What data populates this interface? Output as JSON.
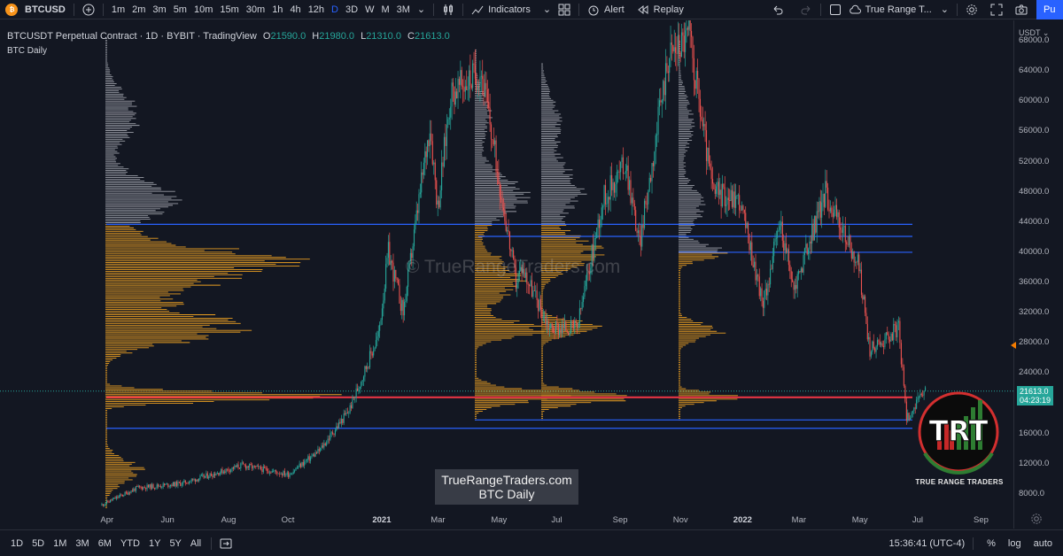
{
  "toolbar": {
    "symbol": "BTCUSD",
    "timeframes": [
      "1m",
      "2m",
      "3m",
      "5m",
      "10m",
      "15m",
      "30m",
      "1h",
      "4h",
      "12h",
      "D",
      "3D",
      "W",
      "M",
      "3M"
    ],
    "active_timeframe": "D",
    "indicators_label": "Indicators",
    "alert_label": "Alert",
    "replay_label": "Replay",
    "layout_name": "True Range T...",
    "publish_label": "Pu"
  },
  "legend": {
    "title": "BTCUSDT Perpetual Contract · 1D · BYBIT · TradingView",
    "o_label": "O",
    "o_value": "21590.0",
    "h_label": "H",
    "h_value": "21980.0",
    "l_label": "L",
    "l_value": "21310.0",
    "c_label": "C",
    "c_value": "21613.0",
    "study": "BTC Daily"
  },
  "price_axis": {
    "currency": "USDT",
    "ticks": [
      "68000.0",
      "64000.0",
      "60000.0",
      "56000.0",
      "52000.0",
      "48000.0",
      "44000.0",
      "40000.0",
      "36000.0",
      "32000.0",
      "28000.0",
      "24000.0",
      "20000.0",
      "16000.0",
      "12000.0",
      "8000.0"
    ],
    "last_price": "21613.0",
    "countdown": "04:23:19"
  },
  "time_axis": {
    "labels": [
      "Apr",
      "Jun",
      "Aug",
      "Oct",
      "2021",
      "Mar",
      "May",
      "Jul",
      "Sep",
      "Nov",
      "2022",
      "Mar",
      "May",
      "Jul",
      "Sep"
    ],
    "bold": [
      "2021",
      "2022"
    ]
  },
  "bottombar": {
    "ranges": [
      "1D",
      "5D",
      "1M",
      "3M",
      "6M",
      "YTD",
      "1Y",
      "5Y",
      "All"
    ],
    "clock": "15:36:41 (UTC-4)",
    "percent": "%",
    "log": "log",
    "auto": "auto"
  },
  "watermark": {
    "line1": "TrueRangeTraders.com",
    "line2": "BTC Daily",
    "faint": "© TrueRangeTraders.com"
  },
  "logo": {
    "letters": "TRT",
    "caption": "TRUE RANGE TRADERS"
  },
  "chart_data": {
    "type": "candlestick",
    "y_range": [
      6000,
      70000
    ],
    "horizontal_lines": [
      {
        "price": 43700,
        "color": "#2962ff"
      },
      {
        "price": 42100,
        "color": "#2962ff"
      },
      {
        "price": 40000,
        "color": "#2962ff"
      },
      {
        "price": 20800,
        "color": "#f23645"
      },
      {
        "price": 17800,
        "color": "#2962ff"
      },
      {
        "price": 16700,
        "color": "#2962ff"
      }
    ],
    "colors": {
      "up": "#26a69a",
      "down": "#ef5350",
      "profile_gray": "#b2b5be",
      "profile_orange": "#f5a623"
    },
    "path_key_points": [
      [
        "2020-03-25",
        6500
      ],
      [
        "2020-05-01",
        8800
      ],
      [
        "2020-06-15",
        9400
      ],
      [
        "2020-08-15",
        11800
      ],
      [
        "2020-10-01",
        10600
      ],
      [
        "2020-11-01",
        13700
      ],
      [
        "2020-12-01",
        19000
      ],
      [
        "2020-12-31",
        29000
      ],
      [
        "2021-01-10",
        40000
      ],
      [
        "2021-01-25",
        32000
      ],
      [
        "2021-02-21",
        57000
      ],
      [
        "2021-03-01",
        46000
      ],
      [
        "2021-03-14",
        61000
      ],
      [
        "2021-04-14",
        64000
      ],
      [
        "2021-05-19",
        36000
      ],
      [
        "2021-05-25",
        38000
      ],
      [
        "2021-06-22",
        30000
      ],
      [
        "2021-07-20",
        30000
      ],
      [
        "2021-08-15",
        47000
      ],
      [
        "2021-09-07",
        52000
      ],
      [
        "2021-09-21",
        41000
      ],
      [
        "2021-10-20",
        66000
      ],
      [
        "2021-11-10",
        69000
      ],
      [
        "2021-12-04",
        48000
      ],
      [
        "2021-12-31",
        47000
      ],
      [
        "2022-01-24",
        33000
      ],
      [
        "2022-02-10",
        44000
      ],
      [
        "2022-02-24",
        35000
      ],
      [
        "2022-03-28",
        48000
      ],
      [
        "2022-05-01",
        38000
      ],
      [
        "2022-05-12",
        27000
      ],
      [
        "2022-06-10",
        30000
      ],
      [
        "2022-06-18",
        18000
      ],
      [
        "2022-07-07",
        21613
      ]
    ]
  }
}
